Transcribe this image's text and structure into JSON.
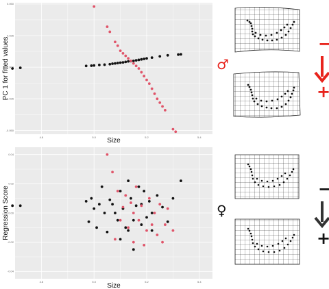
{
  "colors": {
    "panel_bg": "#ebebeb",
    "grid": "#ffffff",
    "group_a": "#111111",
    "group_b": "#e0556a",
    "male_accent": "#e8231c",
    "female_accent": "#333333"
  },
  "legend": {
    "male_symbol": "♂",
    "female_symbol": "♀",
    "minus": "−",
    "plus": "+"
  },
  "chart_data": [
    {
      "type": "scatter",
      "title": "",
      "xlabel": "Size",
      "ylabel": "PC 1 for fitted values",
      "xlim": [
        4.7,
        5.45
      ],
      "ylim": [
        -0.053,
        0.051
      ],
      "x_ticks": [
        "4.8",
        "5.0",
        "5.2",
        "5.4"
      ],
      "x_tick_values": [
        4.8,
        5.0,
        5.2,
        5.4
      ],
      "y_ticks": [
        "0.050",
        "0.025",
        "0.000",
        "-0.025",
        "-0.050"
      ],
      "y_tick_values": [
        0.05,
        0.025,
        0.0,
        -0.025,
        -0.05
      ],
      "grid": true,
      "series": [
        {
          "color": "group_a",
          "points": [
            [
              4.69,
              -0.001
            ],
            [
              4.72,
              -0.0005
            ],
            [
              4.97,
              0.001
            ],
            [
              4.99,
              0.0012
            ],
            [
              5.0,
              0.0014
            ],
            [
              5.02,
              0.0018
            ],
            [
              5.04,
              0.002
            ],
            [
              5.06,
              0.0024
            ],
            [
              5.07,
              0.0028
            ],
            [
              5.08,
              0.003
            ],
            [
              5.09,
              0.0033
            ],
            [
              5.1,
              0.0036
            ],
            [
              5.11,
              0.0038
            ],
            [
              5.12,
              0.0042
            ],
            [
              5.13,
              0.0046
            ],
            [
              5.14,
              0.0048
            ],
            [
              5.15,
              0.005
            ],
            [
              5.16,
              0.0054
            ],
            [
              5.17,
              0.0058
            ],
            [
              5.18,
              0.0062
            ],
            [
              5.19,
              0.0066
            ],
            [
              5.2,
              0.007
            ],
            [
              5.22,
              0.0076
            ],
            [
              5.25,
              0.0086
            ],
            [
              5.28,
              0.0094
            ],
            [
              5.32,
              0.01
            ],
            [
              5.33,
              0.0102
            ]
          ]
        },
        {
          "color": "group_b",
          "points": [
            [
              5.0,
              0.048
            ],
            [
              5.05,
              0.032
            ],
            [
              5.06,
              0.028
            ],
            [
              5.08,
              0.02
            ],
            [
              5.09,
              0.017
            ],
            [
              5.1,
              0.013
            ],
            [
              5.11,
              0.011
            ],
            [
              5.12,
              0.009
            ],
            [
              5.13,
              0.007
            ],
            [
              5.14,
              0.005
            ],
            [
              5.15,
              0.003
            ],
            [
              5.16,
              0.001
            ],
            [
              5.17,
              -0.001
            ],
            [
              5.18,
              -0.004
            ],
            [
              5.19,
              -0.007
            ],
            [
              5.2,
              -0.01
            ],
            [
              5.21,
              -0.013
            ],
            [
              5.22,
              -0.017
            ],
            [
              5.23,
              -0.021
            ],
            [
              5.24,
              -0.025
            ],
            [
              5.25,
              -0.028
            ],
            [
              5.26,
              -0.031
            ],
            [
              5.27,
              -0.034
            ],
            [
              5.3,
              -0.049
            ],
            [
              5.31,
              -0.051
            ]
          ]
        }
      ]
    },
    {
      "type": "scatter",
      "title": "",
      "xlabel": "Size",
      "ylabel": "Regression Score",
      "xlim": [
        4.7,
        5.45
      ],
      "ylim": [
        -0.045,
        0.045
      ],
      "x_ticks": [
        "4.8",
        "5.0",
        "5.2",
        "5.4"
      ],
      "x_tick_values": [
        4.8,
        5.0,
        5.2,
        5.4
      ],
      "y_ticks": [
        "0.04",
        "0.02",
        "0.00",
        "-0.02",
        "-0.04"
      ],
      "y_tick_values": [
        0.04,
        0.02,
        0.0,
        -0.02,
        -0.04
      ],
      "grid": true,
      "series": [
        {
          "color": "group_a",
          "points": [
            [
              4.69,
              0.005
            ],
            [
              4.72,
              0.005
            ],
            [
              4.97,
              0.008
            ],
            [
              4.98,
              -0.006
            ],
            [
              4.99,
              0.01
            ],
            [
              5.0,
              0.003
            ],
            [
              5.01,
              -0.01
            ],
            [
              5.02,
              0.006
            ],
            [
              5.03,
              0.018
            ],
            [
              5.04,
              0.0
            ],
            [
              5.05,
              -0.013
            ],
            [
              5.06,
              0.009
            ],
            [
              5.07,
              0.006
            ],
            [
              5.08,
              0.0
            ],
            [
              5.09,
              -0.005
            ],
            [
              5.1,
              -0.018
            ],
            [
              5.1,
              0.015
            ],
            [
              5.11,
              0.003
            ],
            [
              5.12,
              -0.01
            ],
            [
              5.13,
              -0.012
            ],
            [
              5.13,
              0.022
            ],
            [
              5.14,
              0.01
            ],
            [
              5.15,
              -0.005
            ],
            [
              5.15,
              -0.025
            ],
            [
              5.16,
              0.005
            ],
            [
              5.17,
              0.018
            ],
            [
              5.18,
              -0.008
            ],
            [
              5.18,
              0.006
            ],
            [
              5.19,
              0.015
            ],
            [
              5.2,
              -0.003
            ],
            [
              5.21,
              0.008
            ],
            [
              5.22,
              0.0
            ],
            [
              5.22,
              -0.012
            ],
            [
              5.24,
              0.012
            ],
            [
              5.26,
              0.004
            ],
            [
              5.28,
              -0.006
            ],
            [
              5.3,
              0.01
            ],
            [
              5.33,
              0.022
            ]
          ]
        },
        {
          "color": "group_b",
          "points": [
            [
              5.05,
              0.04
            ],
            [
              5.07,
              0.028
            ],
            [
              5.08,
              -0.018
            ],
            [
              5.09,
              0.015
            ],
            [
              5.1,
              -0.005
            ],
            [
              5.11,
              0.004
            ],
            [
              5.12,
              0.012
            ],
            [
              5.13,
              -0.01
            ],
            [
              5.14,
              0.007
            ],
            [
              5.15,
              0.0
            ],
            [
              5.15,
              -0.02
            ],
            [
              5.16,
              0.018
            ],
            [
              5.17,
              -0.005
            ],
            [
              5.18,
              0.005
            ],
            [
              5.19,
              -0.022
            ],
            [
              5.2,
              -0.012
            ],
            [
              5.21,
              0.01
            ],
            [
              5.22,
              -0.008
            ],
            [
              5.23,
              0.0
            ],
            [
              5.24,
              -0.015
            ],
            [
              5.25,
              0.006
            ],
            [
              5.26,
              -0.02
            ],
            [
              5.27,
              -0.008
            ],
            [
              5.28,
              0.003
            ],
            [
              5.3,
              -0.012
            ]
          ]
        }
      ]
    }
  ]
}
